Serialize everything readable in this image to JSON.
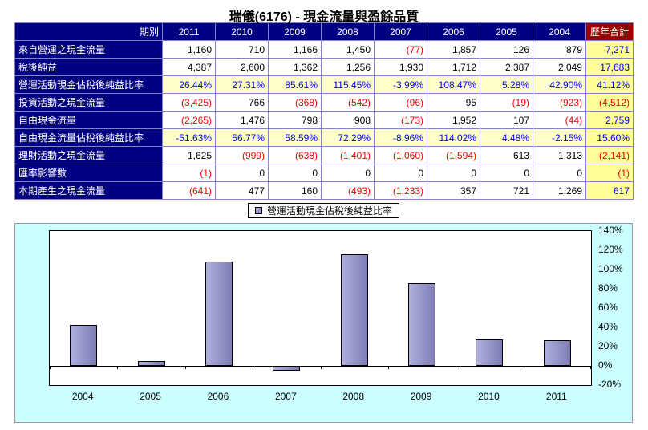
{
  "title": "瑞儀(6176) -  現金流量與盈餘品質",
  "table": {
    "period_header": "期別",
    "total_header": "歷年合計",
    "years": [
      "2011",
      "2010",
      "2009",
      "2008",
      "2007",
      "2006",
      "2005",
      "2004"
    ],
    "rows": [
      {
        "label": "來自營運之現金流量",
        "type": "number",
        "values": [
          "1,160",
          "710",
          "1,166",
          "1,450",
          "(77)",
          "1,857",
          "126",
          "879"
        ],
        "total": "7,271"
      },
      {
        "label": "稅後純益",
        "type": "number",
        "values": [
          "4,387",
          "2,600",
          "1,362",
          "1,256",
          "1,930",
          "1,712",
          "2,387",
          "2,049"
        ],
        "total": "17,683"
      },
      {
        "label": "營運活動現金佔稅後純益比率",
        "type": "percent",
        "values": [
          "26.44%",
          "27.31%",
          "85.61%",
          "115.45%",
          "-3.99%",
          "108.47%",
          "5.28%",
          "42.90%"
        ],
        "total": "41.12%"
      },
      {
        "label": "投資活動之現金流量",
        "type": "number",
        "values": [
          "(3,425)",
          "766",
          "(368)",
          "(542)",
          "(96)",
          "95",
          "(19)",
          "(923)"
        ],
        "total": "(4,512)"
      },
      {
        "label": "自由現金流量",
        "type": "number",
        "values": [
          "(2,265)",
          "1,476",
          "798",
          "908",
          "(173)",
          "1,952",
          "107",
          "(44)"
        ],
        "total": "2,759"
      },
      {
        "label": "自由現金流量佔稅後純益比率",
        "type": "percent",
        "values": [
          "-51.63%",
          "56.77%",
          "58.59%",
          "72.29%",
          "-8.96%",
          "114.02%",
          "4.48%",
          "-2.15%"
        ],
        "total": "15.60%"
      },
      {
        "label": "理財活動之現金流量",
        "type": "number",
        "values": [
          "1,625",
          "(999)",
          "(638)",
          "(1,401)",
          "(1,060)",
          "(1,594)",
          "613",
          "1,313"
        ],
        "total": "(2,141)"
      },
      {
        "label": "匯率影響數",
        "type": "number",
        "values": [
          "(1)",
          "0",
          "0",
          "0",
          "0",
          "0",
          "0",
          "0"
        ],
        "total": "(1)"
      },
      {
        "label": "本期產生之現金流量",
        "type": "number",
        "values": [
          "(641)",
          "477",
          "160",
          "(493)",
          "(1,233)",
          "357",
          "721",
          "1,269"
        ],
        "total": "617"
      }
    ]
  },
  "chart_data": {
    "type": "bar",
    "legend": "營運活動現金佔稅後純益比率",
    "categories": [
      "2004",
      "2005",
      "2006",
      "2007",
      "2008",
      "2009",
      "2010",
      "2011"
    ],
    "values": [
      42.9,
      5.28,
      108.47,
      -3.99,
      115.45,
      85.61,
      27.31,
      26.44
    ],
    "ylim": [
      -20,
      140
    ],
    "ytick_step": 20,
    "ytick_labels": [
      "140%",
      "120%",
      "100%",
      "80%",
      "60%",
      "40%",
      "20%",
      "0%",
      "-20%"
    ],
    "ylabel": "",
    "xlabel": "",
    "legend_position": "top-center",
    "yaxis_side": "right",
    "grid": false
  },
  "colors": {
    "header_bg": "#000080",
    "total_header_bg": "#990000",
    "label_bg": "#000080",
    "grid_border": "#8282c8",
    "percent_row_bg": "#FFFFCC",
    "total_col_bg": "#FFFF99",
    "percent_text": "#0000FF",
    "total_text": "#0000FF",
    "negative": "#FF0000",
    "bar_fill": "#9999CC",
    "chart_bg": "#CCFFFF"
  }
}
